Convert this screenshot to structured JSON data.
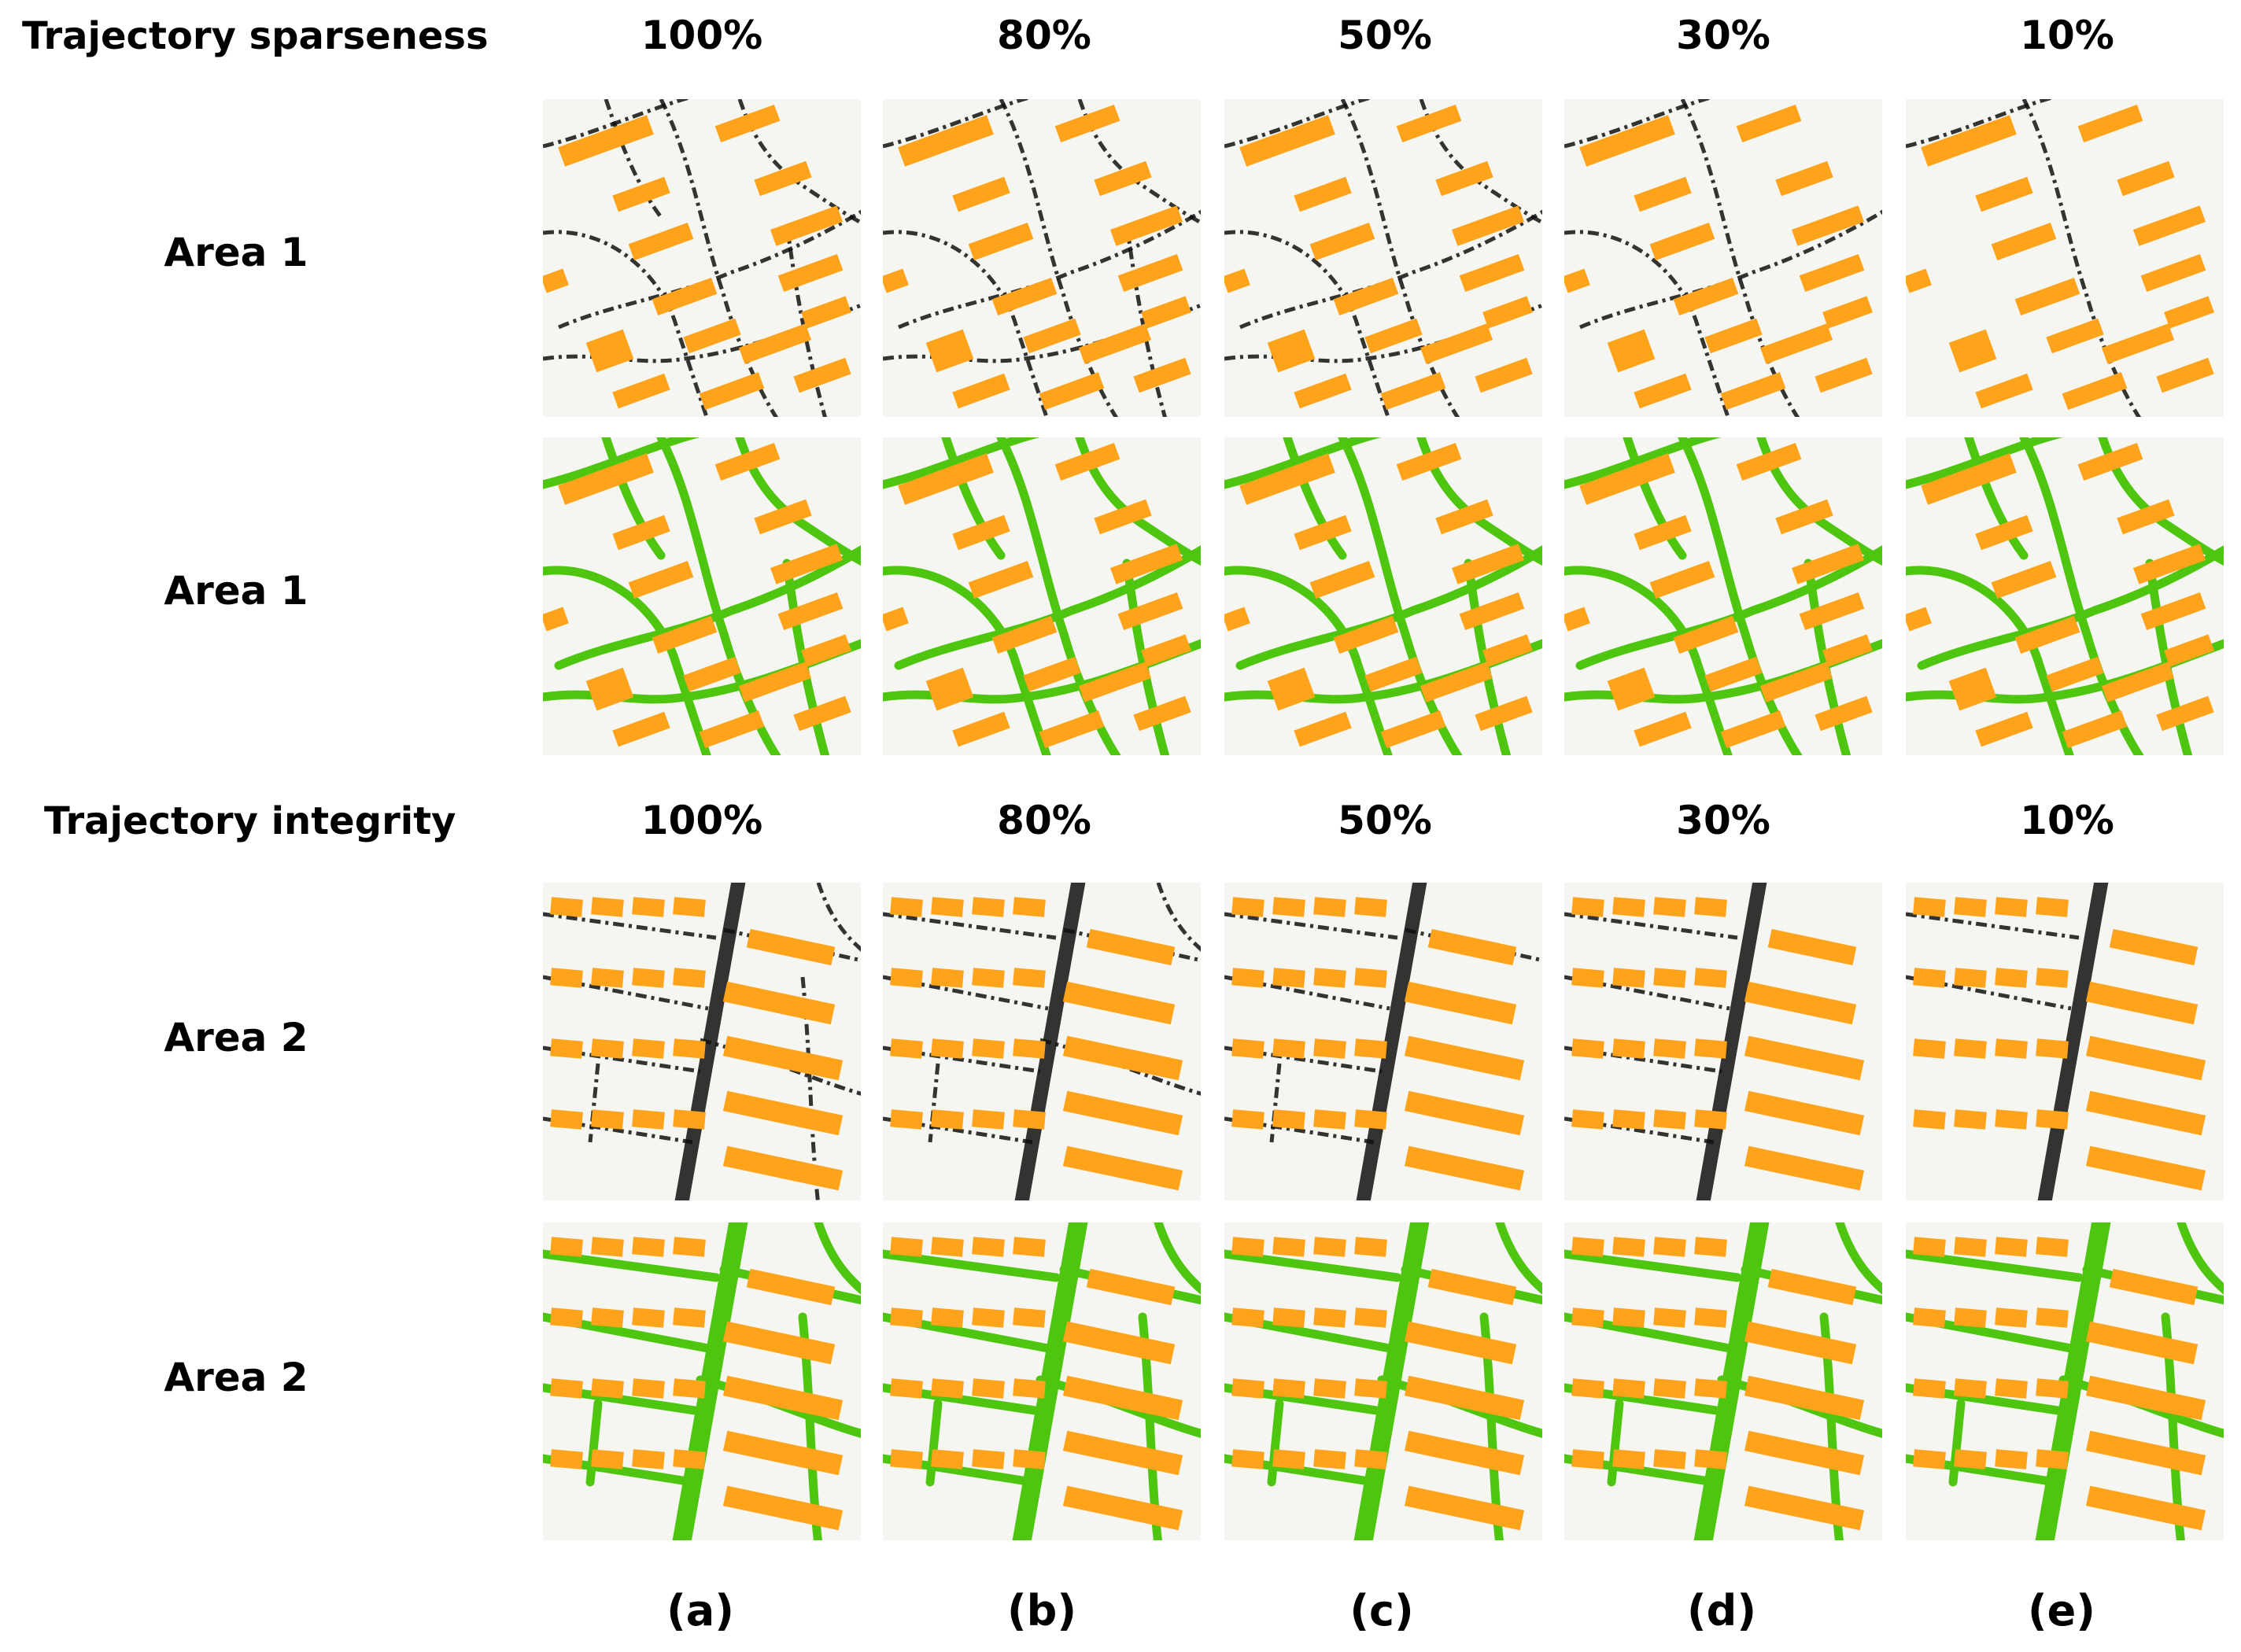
{
  "figure": {
    "sparseness_title": "Trajectory sparseness",
    "integrity_title": "Trajectory integrity",
    "sparseness_levels": [
      "100%",
      "80%",
      "50%",
      "30%",
      "10%"
    ],
    "integrity_levels": [
      "100%",
      "80%",
      "50%",
      "30%",
      "10%"
    ],
    "row_labels": [
      "Area 1",
      "Area 1",
      "Area 2",
      "Area 2"
    ],
    "column_labels": [
      "(a)",
      "(b)",
      "(c)",
      "(d)",
      "(e)"
    ],
    "colors": {
      "building": "#ffa31a",
      "road": "#4ec50f",
      "trajectory": "#111111",
      "background": "#f5f5f2"
    }
  }
}
